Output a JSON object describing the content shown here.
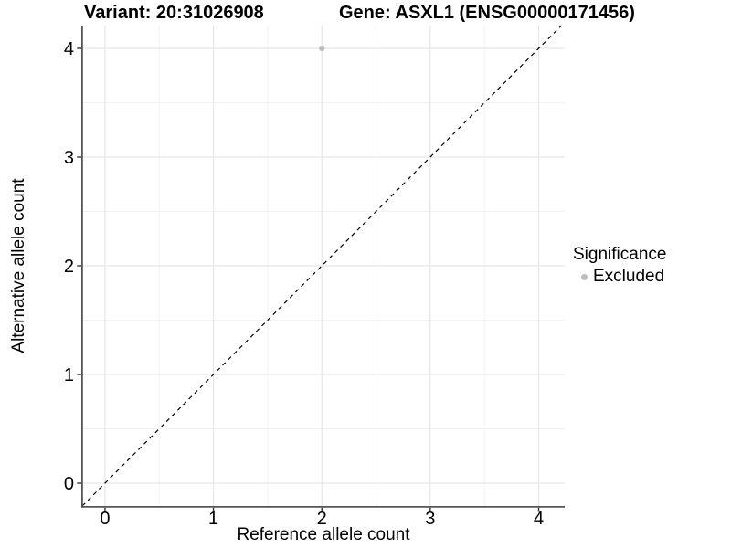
{
  "chart_data": {
    "type": "scatter",
    "title_left": "Variant: 20:31026908",
    "title_right": "Gene: ASXL1 (ENSG00000171456)",
    "xlabel": "Reference allele count",
    "ylabel": "Alternative allele count",
    "xlim": [
      -0.21,
      4.24
    ],
    "ylim": [
      -0.21,
      4.21
    ],
    "x_ticks": [
      0,
      1,
      2,
      3,
      4
    ],
    "y_ticks": [
      0,
      1,
      2,
      3,
      4
    ],
    "minor_ticks": [
      0.5,
      1.5,
      2.5,
      3.5
    ],
    "grid": true,
    "identity_line": {
      "style": "dashed",
      "from": -0.21,
      "to": 4.21,
      "color": "#000000"
    },
    "series": [
      {
        "name": "Excluded",
        "color": "#bdbdbd",
        "points": [
          {
            "x": 2,
            "y": 4
          }
        ]
      }
    ],
    "legend": {
      "title": "Significance",
      "position": "right",
      "entries": [
        {
          "label": "Excluded",
          "color": "#bdbdbd"
        }
      ]
    },
    "colors": {
      "background": "#ffffff",
      "grid_major": "#e6e6e6",
      "grid_minor": "#f2f2f2",
      "axis_line": "#555555",
      "tick_mark": "#333333",
      "tick_label": "#000000"
    }
  }
}
